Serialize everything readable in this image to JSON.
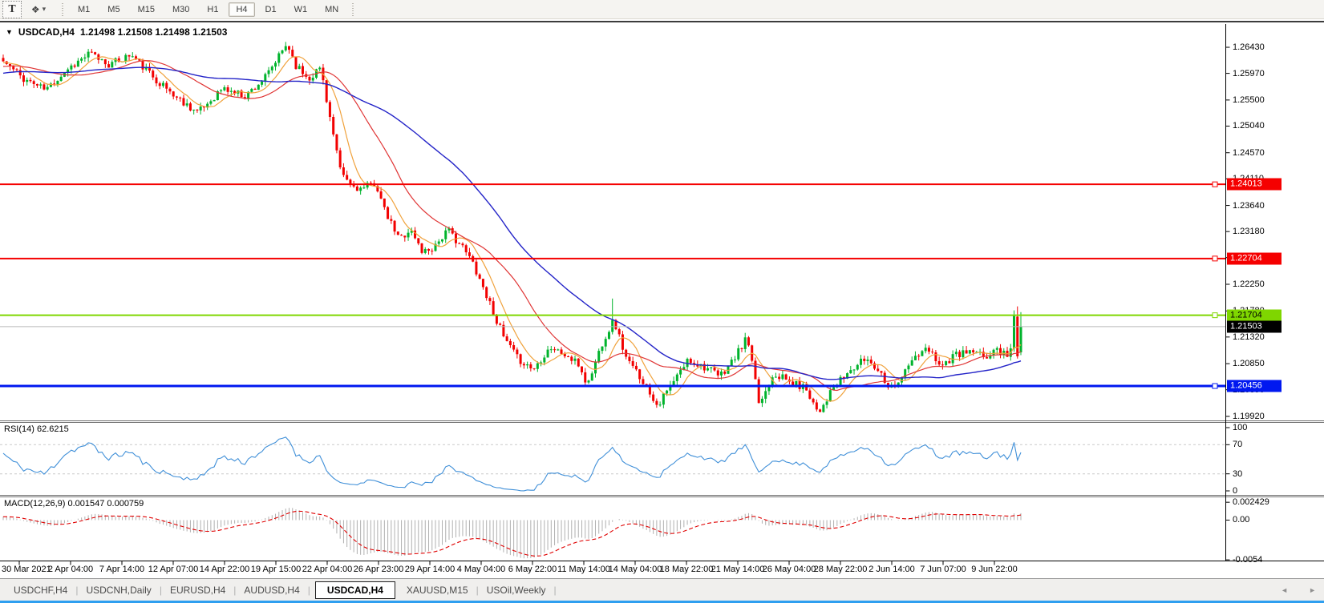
{
  "toolbar": {
    "text_tool_label": "T",
    "timeframes": [
      "M1",
      "M5",
      "M15",
      "M30",
      "H1",
      "H4",
      "D1",
      "W1",
      "MN"
    ],
    "active_timeframe": "H4"
  },
  "icons": {
    "chart_dropdown": "▼",
    "arrows_tool": "❖",
    "dropdown_caret": "▾",
    "tab_scroll_left": "◄",
    "tab_scroll_right": "►"
  },
  "chart_header": {
    "symbol": "USDCAD,H4",
    "quote": "1.21498 1.21508 1.21498 1.21503"
  },
  "price_axis": {
    "ticks": [
      "1.26430",
      "1.25970",
      "1.25500",
      "1.25040",
      "1.24570",
      "1.24110",
      "1.23640",
      "1.23180",
      "1.22720",
      "1.22250",
      "1.21780",
      "1.21320",
      "1.20850",
      "1.20390",
      "1.19920"
    ],
    "lines": [
      {
        "name": "resistance-line-1",
        "price": 1.24013,
        "label": "1.24013",
        "color": "#f50000",
        "text_color": "#ffffff",
        "width": 2
      },
      {
        "name": "resistance-line-2",
        "price": 1.22704,
        "label": "1.22704",
        "color": "#f50000",
        "text_color": "#ffffff",
        "width": 2
      },
      {
        "name": "resistance-line-3",
        "price": 1.21704,
        "label": "1.21704",
        "color": "#7fd600",
        "text_color": "#000000",
        "width": 2
      },
      {
        "name": "support-line-1",
        "price": 1.20456,
        "label": "1.20456",
        "color": "#0018f0",
        "text_color": "#ffffff",
        "width": 3
      }
    ],
    "current_price": {
      "price": 1.21503,
      "label": "1.21503",
      "line_color": "#b9b9b9",
      "bg": "#000000",
      "text_color": "#ffffff"
    }
  },
  "rsi_panel": {
    "label": "RSI(14) 62.6215",
    "levels": [
      {
        "value": 100,
        "label": "100",
        "dashed": false
      },
      {
        "value": 70,
        "label": "70",
        "dashed": true
      },
      {
        "value": 30,
        "label": "30",
        "dashed": true
      },
      {
        "value": 0,
        "label": "0",
        "dashed": false
      }
    ]
  },
  "macd_panel": {
    "label": "MACD(12,26,9) 0.001547 0.000759",
    "axis_labels": [
      {
        "value": 0.002429,
        "label": "0.002429"
      },
      {
        "value": 0,
        "label": "0.00"
      },
      {
        "value": -0.0054,
        "label": "-0.0054"
      }
    ]
  },
  "time_axis": {
    "labels": [
      "30 Mar 2021",
      "2 Apr 04:00",
      "7 Apr 14:00",
      "12 Apr 07:00",
      "14 Apr 22:00",
      "19 Apr 15:00",
      "22 Apr 04:00",
      "26 Apr 23:00",
      "29 Apr 14:00",
      "4 May 04:00",
      "6 May 22:00",
      "11 May 14:00",
      "14 May 04:00",
      "18 May 22:00",
      "21 May 14:00",
      "26 May 04:00",
      "28 May 22:00",
      "2 Jun 14:00",
      "7 Jun 07:00",
      "9 Jun 22:00"
    ]
  },
  "tabs": {
    "items": [
      "USDCHF,H4",
      "USDCNH,Daily",
      "EURUSD,H4",
      "AUDUSD,H4",
      "USDCAD,H4",
      "XAUUSD,M15",
      "USOil,Weekly"
    ],
    "active": "USDCAD,H4"
  },
  "colors": {
    "up": "#00b32c",
    "down": "#f20000",
    "ma_fast": "#f0a23c",
    "ma_mid": "#e03636",
    "ma_slow": "#2424c8",
    "rsi_line": "#3f8fd8",
    "level_dash": "#c9c9c9",
    "macd_hist": "#b0b0b0",
    "macd_signal": "#e00000",
    "axis_line": "#000000",
    "separator": "#6e6e6e",
    "accent_strip": "#2f9ff0"
  },
  "chart_data": {
    "type": "candlestick",
    "symbol": "USDCAD",
    "timeframe": "H4",
    "bars": 300,
    "price_range": [
      1.19849,
      1.2684
    ],
    "rsi_range": [
      0,
      100
    ],
    "macd_range": [
      -0.0055,
      0.0031
    ],
    "indicators": {
      "ma_fast_period": 8,
      "ma_mid_period": 24,
      "ma_slow_period": 55,
      "rsi_period": 14,
      "macd_periods": [
        12,
        26,
        9
      ]
    },
    "noise_seed": 11,
    "body_noise": 0.0007,
    "wick_noise": 0.0008,
    "spike": {
      "t": 0.6,
      "extra_high": 0.0038
    },
    "last_bars_override": [
      {
        "open": null,
        "close": 1.217,
        "high": 1.2179,
        "low": null
      },
      {
        "open": 1.2168,
        "close": 1.2098,
        "high": 1.2186,
        "low": 1.2094
      },
      {
        "open": 1.2105,
        "close": 1.21503,
        "high": 1.2176,
        "low": 1.21
      }
    ],
    "close_path_anchors": [
      [
        0.0,
        1.2618
      ],
      [
        0.02,
        1.2588
      ],
      [
        0.042,
        1.2568
      ],
      [
        0.063,
        1.2605
      ],
      [
        0.085,
        1.2632
      ],
      [
        0.105,
        1.2612
      ],
      [
        0.125,
        1.263
      ],
      [
        0.148,
        1.259
      ],
      [
        0.17,
        1.2555
      ],
      [
        0.192,
        1.2528
      ],
      [
        0.215,
        1.257
      ],
      [
        0.238,
        1.2558
      ],
      [
        0.259,
        1.2592
      ],
      [
        0.279,
        1.265
      ],
      [
        0.288,
        1.261
      ],
      [
        0.3,
        1.2588
      ],
      [
        0.312,
        1.2608
      ],
      [
        0.321,
        1.252
      ],
      [
        0.331,
        1.2425
      ],
      [
        0.341,
        1.24
      ],
      [
        0.353,
        1.2392
      ],
      [
        0.366,
        1.2405
      ],
      [
        0.375,
        1.2352
      ],
      [
        0.389,
        1.2305
      ],
      [
        0.4,
        1.2322
      ],
      [
        0.412,
        1.2282
      ],
      [
        0.422,
        1.229
      ],
      [
        0.437,
        1.232
      ],
      [
        0.448,
        1.2298
      ],
      [
        0.462,
        1.2262
      ],
      [
        0.478,
        1.2192
      ],
      [
        0.492,
        1.213
      ],
      [
        0.505,
        1.2095
      ],
      [
        0.521,
        1.2075
      ],
      [
        0.537,
        1.2115
      ],
      [
        0.552,
        1.21
      ],
      [
        0.566,
        1.2082
      ],
      [
        0.574,
        1.2046
      ],
      [
        0.588,
        1.212
      ],
      [
        0.6,
        1.2162
      ],
      [
        0.613,
        1.209
      ],
      [
        0.627,
        1.206
      ],
      [
        0.643,
        1.2012
      ],
      [
        0.657,
        1.2048
      ],
      [
        0.673,
        1.2092
      ],
      [
        0.689,
        1.208
      ],
      [
        0.704,
        1.2062
      ],
      [
        0.72,
        1.2098
      ],
      [
        0.731,
        1.2132
      ],
      [
        0.743,
        1.2012
      ],
      [
        0.757,
        1.207
      ],
      [
        0.773,
        1.2052
      ],
      [
        0.789,
        1.2042
      ],
      [
        0.801,
        1.2
      ],
      [
        0.816,
        1.2042
      ],
      [
        0.832,
        1.2072
      ],
      [
        0.848,
        1.2095
      ],
      [
        0.86,
        1.2075
      ],
      [
        0.872,
        1.2042
      ],
      [
        0.883,
        1.2062
      ],
      [
        0.895,
        1.2095
      ],
      [
        0.909,
        1.211
      ],
      [
        0.923,
        1.2082
      ],
      [
        0.936,
        1.21
      ],
      [
        0.95,
        1.2106
      ],
      [
        0.965,
        1.2096
      ],
      [
        0.976,
        1.211
      ],
      [
        0.987,
        1.2102
      ],
      [
        1.0,
        1.215
      ]
    ]
  }
}
